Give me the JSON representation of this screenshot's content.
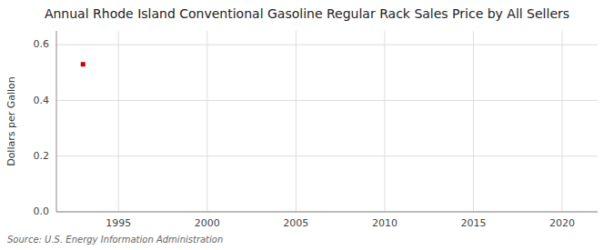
{
  "chart_data": {
    "type": "scatter",
    "title": "Annual Rhode Island Conventional Gasoline Regular Rack Sales Price by All Sellers",
    "y_label": "Dollars per Gallon",
    "source": "Source: U.S. Energy Information Administration",
    "x": [
      1993
    ],
    "values": [
      0.53
    ],
    "color": "#cc0000",
    "marker": "square",
    "xlim": [
      1991.5,
      2022
    ],
    "ylim": [
      0.0,
      0.65
    ],
    "xticks": [
      1995,
      2000,
      2005,
      2010,
      2015,
      2020
    ],
    "yticks": [
      {
        "value": 0.0,
        "label": "0.0"
      },
      0.2,
      0.4,
      0.6
    ],
    "grid": true
  }
}
